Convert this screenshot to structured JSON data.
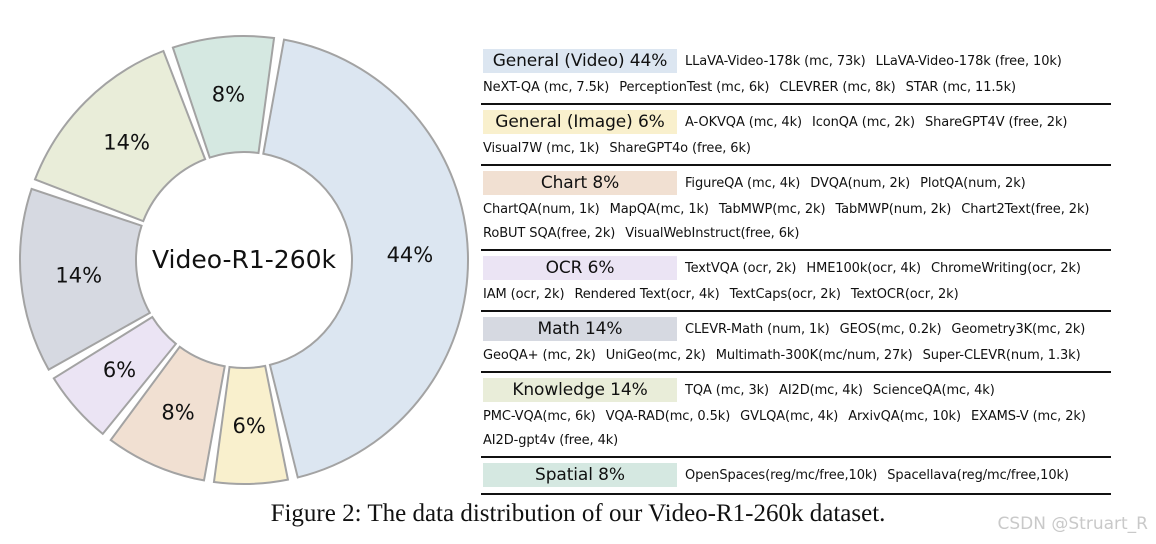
{
  "chart_data": {
    "type": "pie",
    "center_label": "Video-R1-260k",
    "slices": [
      {
        "label": "Spatial",
        "value": 8,
        "display": "8%",
        "color": "#d5e8e1"
      },
      {
        "label": "General (Video)",
        "value": 44,
        "display": "44%",
        "color": "#dce6f1"
      },
      {
        "label": "General (Image)",
        "value": 6,
        "display": "6%",
        "color": "#f9f0cd"
      },
      {
        "label": "Chart",
        "value": 8,
        "display": "8%",
        "color": "#f1e0d2"
      },
      {
        "label": "OCR",
        "value": 6,
        "display": "6%",
        "color": "#ebe4f4"
      },
      {
        "label": "Math",
        "value": 14,
        "display": "14%",
        "color": "#d6d9e1"
      },
      {
        "label": "Knowledge",
        "value": 14,
        "display": "14%",
        "color": "#e9edd9"
      }
    ]
  },
  "legend": [
    {
      "title": "General (Video) 44%",
      "color": "#dce6f1",
      "lines": [
        [
          "LLaVA-Video-178k (mc, 73k)",
          "LLaVA-Video-178k (free, 10k)"
        ],
        [
          "NeXT-QA (mc, 7.5k)",
          "PerceptionTest (mc, 6k)",
          "CLEVRER (mc, 8k)",
          "STAR (mc, 11.5k)"
        ]
      ]
    },
    {
      "title": "General (Image) 6%",
      "color": "#f9f0cd",
      "lines": [
        [
          "A-OKVQA (mc, 4k)",
          "IconQA (mc, 2k)",
          "ShareGPT4V (free, 2k)"
        ],
        [
          "Visual7W  (mc, 1k)",
          "ShareGPT4o (free, 6k)"
        ]
      ]
    },
    {
      "title": "Chart 8%",
      "color": "#f1e0d2",
      "lines": [
        [
          "FigureQA (mc, 4k)",
          "DVQA(num, 2k)",
          "PlotQA(num, 2k)"
        ],
        [
          "ChartQA(num, 1k)",
          "MapQA(mc, 1k)",
          "TabMWP(mc, 2k)",
          "TabMWP(num, 2k)",
          "Chart2Text(free, 2k)"
        ],
        [
          "RoBUT SQA(free, 2k)",
          "VisualWebInstruct(free, 6k)"
        ]
      ]
    },
    {
      "title": "OCR 6%",
      "color": "#ebe4f4",
      "lines": [
        [
          "TextVQA (ocr, 2k)",
          "HME100k(ocr, 4k)",
          "ChromeWriting(ocr, 2k)"
        ],
        [
          "IAM (ocr, 2k)",
          "Rendered Text(ocr, 4k)",
          "TextCaps(ocr, 2k)",
          "TextOCR(ocr, 2k)"
        ]
      ]
    },
    {
      "title": "Math 14%",
      "color": "#d6d9e1",
      "lines": [
        [
          "CLEVR-Math (num, 1k)",
          "GEOS(mc, 0.2k)",
          "Geometry3K(mc, 2k)"
        ],
        [
          "GeoQA+ (mc, 2k)",
          "UniGeo(mc, 2k)",
          "Multimath-300K(mc/num, 27k)",
          "Super-CLEVR(num, 1.3k)"
        ]
      ]
    },
    {
      "title": "Knowledge 14%",
      "color": "#e9edd9",
      "lines": [
        [
          "TQA (mc, 3k)",
          "AI2D(mc, 4k)",
          "ScienceQA(mc, 4k)"
        ],
        [
          "PMC-VQA(mc, 6k)",
          "VQA-RAD(mc, 0.5k)",
          "GVLQA(mc, 4k)",
          "ArxivQA(mc, 10k)",
          "EXAMS-V (mc, 2k)"
        ],
        [
          "AI2D-gpt4v (free, 4k)"
        ]
      ]
    },
    {
      "title": "Spatial 8%",
      "color": "#d5e8e1",
      "lines": [
        [
          "OpenSpaces(reg/mc/free,10k)",
          "Spacellava(reg/mc/free,10k)"
        ]
      ]
    }
  ],
  "caption": "Figure 2:  The data distribution of our Video-R1-260k dataset.",
  "watermark": "CSDN @Struart_R"
}
